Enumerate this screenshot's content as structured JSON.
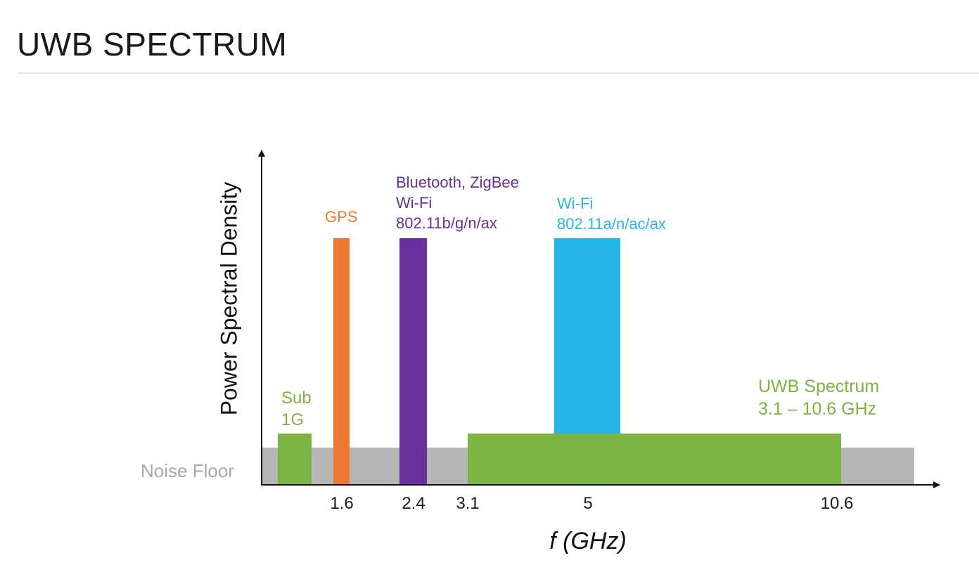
{
  "title": "UWB SPECTRUM",
  "colors": {
    "noise_floor": "#b5b6b5",
    "sub1g": "#7cb342",
    "gps": "#ed7a33",
    "bluetooth": "#68309a",
    "wifi5": "#26b5e6",
    "uwb": "#7cb342",
    "axis": "#111111"
  },
  "axes": {
    "y_label": "Power Spectral Density",
    "x_label": "f (GHz)",
    "ticks": [
      "1.6",
      "2.4",
      "3.1",
      "5",
      "10.6"
    ]
  },
  "noise_floor_label": "Noise Floor",
  "bands": {
    "sub1g": {
      "line1": "Sub",
      "line2": "1G"
    },
    "gps": {
      "label": "GPS"
    },
    "bluetooth": {
      "line1": "Bluetooth, ZigBee",
      "line2": "Wi-Fi",
      "line3": "802.11b/g/n/ax"
    },
    "wifi5": {
      "line1": "Wi-Fi",
      "line2": "802.11a/n/ac/ax"
    },
    "uwb": {
      "line1": "UWB Spectrum",
      "line2": "3.1 – 10.6 GHz"
    }
  }
}
